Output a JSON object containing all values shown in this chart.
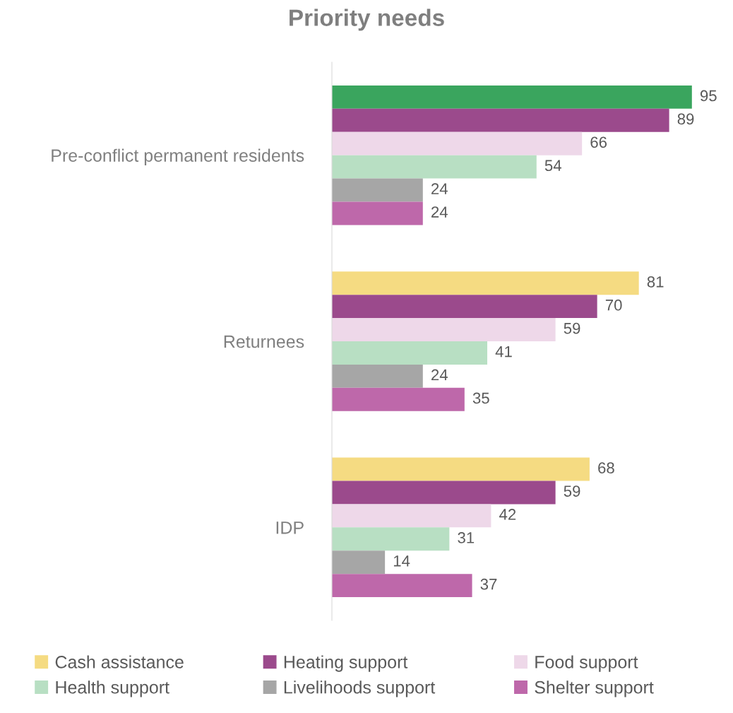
{
  "chart_data": {
    "type": "bar",
    "orientation": "horizontal",
    "title": "Priority needs",
    "categories": [
      "Pre-conflict permanent residents",
      "Returnees",
      "IDP"
    ],
    "series": [
      {
        "name": "Cash assistance",
        "color": "#f5db82",
        "colors": [
          "#3aa55e",
          "#f5db82",
          "#f5db82"
        ],
        "values": [
          95,
          81,
          68
        ]
      },
      {
        "name": "Heating support",
        "color": "#9b4a8c",
        "values": [
          89,
          70,
          59
        ]
      },
      {
        "name": "Food support",
        "color": "#eed8e9",
        "values": [
          66,
          59,
          42
        ]
      },
      {
        "name": "Health support",
        "color": "#b8dfc3",
        "values": [
          54,
          41,
          31
        ]
      },
      {
        "name": "Livelihoods support",
        "color": "#a6a6a6",
        "values": [
          24,
          24,
          14
        ]
      },
      {
        "name": "Shelter support",
        "color": "#be68aa",
        "values": [
          24,
          35,
          37
        ]
      }
    ],
    "data_labels": true,
    "grid": false,
    "legend": "bottom"
  }
}
